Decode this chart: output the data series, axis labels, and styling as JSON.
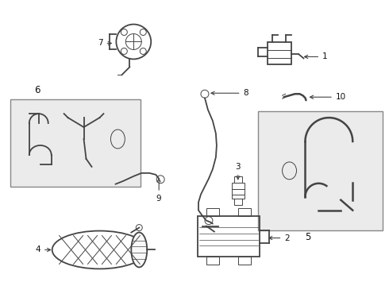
{
  "bg_color": "#ffffff",
  "line_color": "#444444",
  "label_color": "#111111",
  "box_bg": "#ebebeb",
  "box_border": "#888888",
  "figsize": [
    4.9,
    3.6
  ],
  "dpi": 100,
  "lw_main": 1.3,
  "lw_thin": 0.7,
  "fontsize": 7.5
}
